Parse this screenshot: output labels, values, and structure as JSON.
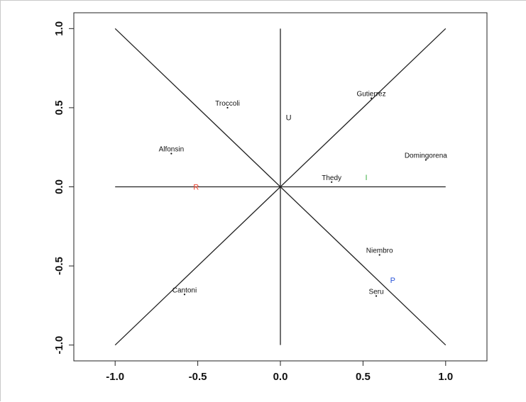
{
  "chart_data": {
    "type": "scatter",
    "title": "",
    "xlabel": "",
    "ylabel": "",
    "xlim": [
      -1.25,
      1.25
    ],
    "ylim": [
      -1.1,
      1.1
    ],
    "x_ticks": [
      "-1.0",
      "-0.5",
      "0.0",
      "0.5",
      "1.0"
    ],
    "y_ticks": [
      "-1.0",
      "-0.5",
      "0.0",
      "0.5",
      "1.0"
    ],
    "grid": false,
    "reference_lines": [
      {
        "from": [
          -1,
          0
        ],
        "to": [
          1,
          0
        ]
      },
      {
        "from": [
          0,
          -1
        ],
        "to": [
          0,
          1
        ]
      },
      {
        "from": [
          -1,
          -1
        ],
        "to": [
          1,
          1
        ]
      },
      {
        "from": [
          -1,
          1
        ],
        "to": [
          1,
          -1
        ]
      }
    ],
    "points": [
      {
        "label": "Troccoli",
        "x": -0.32,
        "y": 0.5
      },
      {
        "label": "Gutierrez",
        "x": 0.55,
        "y": 0.56
      },
      {
        "label": "Alfonsin",
        "x": -0.66,
        "y": 0.21
      },
      {
        "label": "Domingorena",
        "x": 0.88,
        "y": 0.17
      },
      {
        "label": "Thedy",
        "x": 0.31,
        "y": 0.03
      },
      {
        "label": "Niembro",
        "x": 0.6,
        "y": -0.43
      },
      {
        "label": "Seru",
        "x": 0.58,
        "y": -0.69
      },
      {
        "label": "Cantoni",
        "x": -0.58,
        "y": -0.68
      }
    ],
    "categories": [
      {
        "label": "U",
        "x": 0.05,
        "y": 0.44,
        "color": "#1a1a1a"
      },
      {
        "label": "R",
        "x": -0.51,
        "y": 0.0,
        "color": "#e8412c"
      },
      {
        "label": "I",
        "x": 0.52,
        "y": 0.06,
        "color": "#3cb043"
      },
      {
        "label": "P",
        "x": 0.68,
        "y": -0.59,
        "color": "#2b55d9"
      }
    ]
  }
}
